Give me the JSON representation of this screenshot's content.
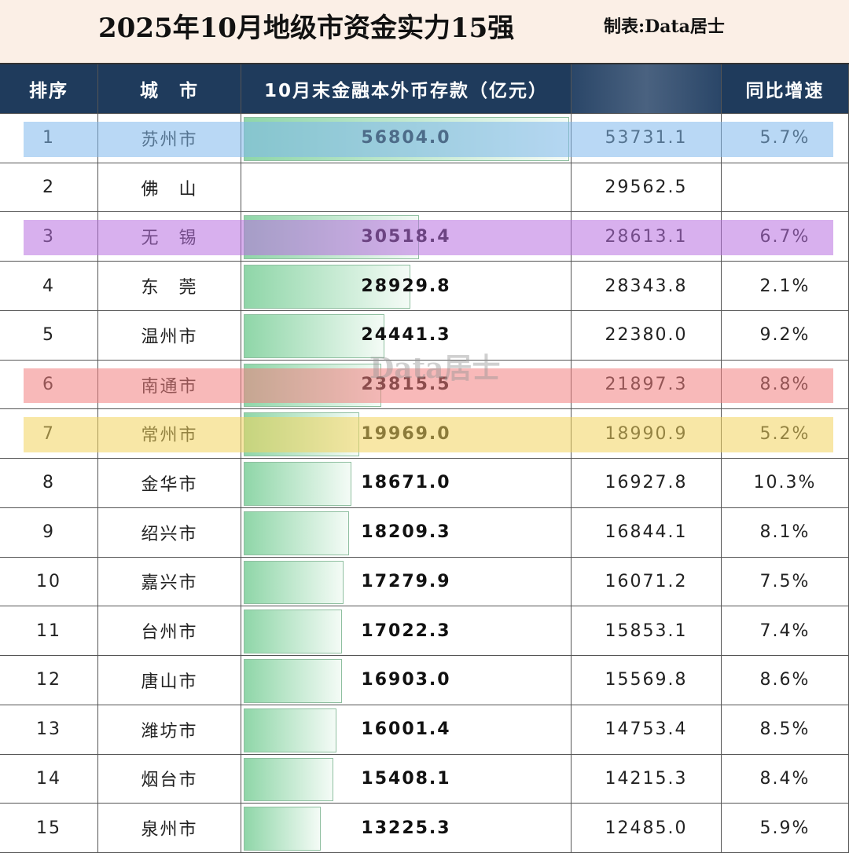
{
  "header": {
    "title": "2025年10月地级市资金实力15强",
    "credit": "制表:Data居士"
  },
  "watermark": "Data居士",
  "table": {
    "columns": [
      "排序",
      "城　市",
      "10月末金融本外币存款（亿元）",
      null,
      "同比增速"
    ],
    "bar_column": 2,
    "bar_color": "#8fd6a8",
    "rows": [
      [
        "1",
        "苏州市",
        "56804.0",
        "53731.1",
        "5.7%"
      ],
      [
        "2",
        "佛　山",
        null,
        "29562.5",
        null
      ],
      [
        "3",
        "无　锡",
        "30518.4",
        "28613.1",
        "6.7%"
      ],
      [
        "4",
        "东　莞",
        "28929.8",
        "28343.8",
        "2.1%"
      ],
      [
        "5",
        "温州市",
        "24441.3",
        "22380.0",
        "9.2%"
      ],
      [
        "6",
        "南通市",
        "23815.5",
        "21897.3",
        "8.8%"
      ],
      [
        "7",
        "常州市",
        "19969.0",
        "18990.9",
        "5.2%"
      ],
      [
        "8",
        "金华市",
        "18671.0",
        "16927.8",
        "10.3%"
      ],
      [
        "9",
        "绍兴市",
        "18209.3",
        "16844.1",
        "8.1%"
      ],
      [
        "10",
        "嘉兴市",
        "17279.9",
        "16071.2",
        "7.5%"
      ],
      [
        "11",
        "台州市",
        "17022.3",
        "15853.1",
        "7.4%"
      ],
      [
        "12",
        "唐山市",
        "16903.0",
        "15569.8",
        "8.6%"
      ],
      [
        "13",
        "潍坊市",
        "16001.4",
        "14753.4",
        "8.5%"
      ],
      [
        "14",
        "烟台市",
        "15408.1",
        "14215.3",
        "8.4%"
      ],
      [
        "15",
        "泉州市",
        "13225.3",
        "12485.0",
        "5.9%"
      ]
    ],
    "highlights": [
      {
        "row": 0,
        "color": "#7fb8ec"
      },
      {
        "row": 2,
        "color": "#b86fe0"
      },
      {
        "row": 5,
        "color": "#f27f7f"
      },
      {
        "row": 6,
        "color": "#f2d45c"
      }
    ]
  }
}
